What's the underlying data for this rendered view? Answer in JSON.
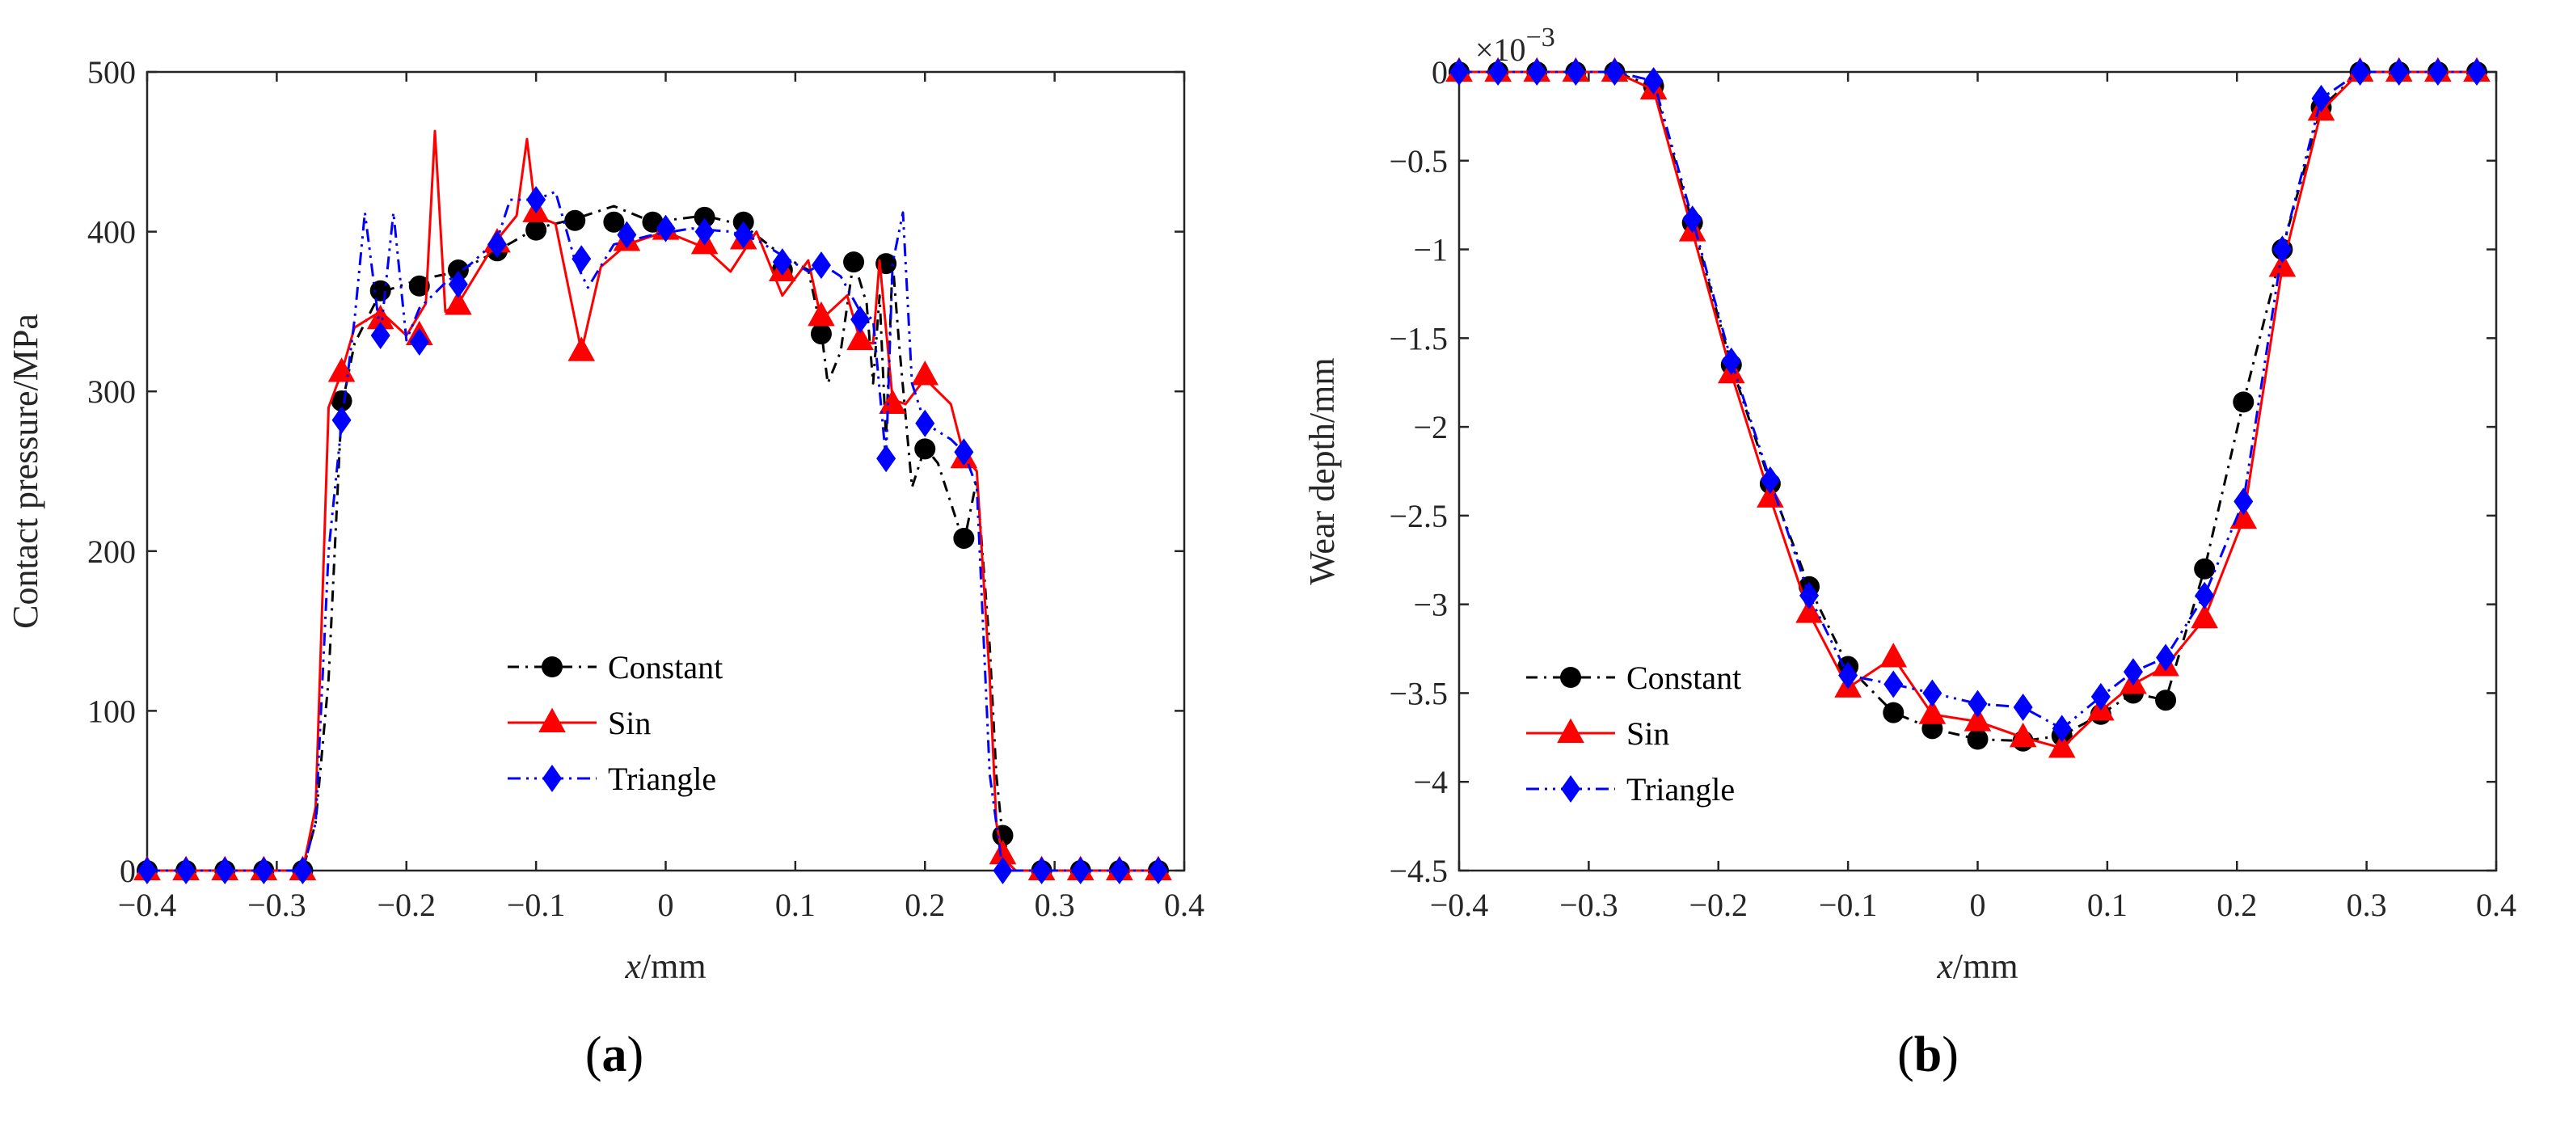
{
  "chart_data": [
    {
      "type": "line",
      "panel_label": "(a)",
      "panel_paren_open": "(",
      "panel_letter": "a",
      "panel_paren_close": ")",
      "xlabel_var": "x",
      "xlabel_unit": "/mm",
      "ylabel": "Contact pressure/MPa",
      "xlim": [
        -0.4,
        0.4
      ],
      "ylim": [
        0,
        500
      ],
      "xticks": [
        -0.4,
        -0.3,
        -0.2,
        -0.1,
        0,
        0.1,
        0.2,
        0.3,
        0.4
      ],
      "xtick_labels": [
        "−0.4",
        "−0.3",
        "−0.2",
        "−0.1",
        "0",
        "0.1",
        "0.2",
        "0.3",
        "0.4"
      ],
      "yticks": [
        0,
        100,
        200,
        300,
        400,
        500
      ],
      "ytick_labels": [
        "0",
        "100",
        "200",
        "300",
        "400",
        "500"
      ],
      "exponent": "",
      "legend_location": "lower-center",
      "series": [
        {
          "name": "Constant",
          "color": "#000000",
          "dash": "14,8,3,8",
          "marker": "circle",
          "x": [
            -0.4,
            -0.37,
            -0.34,
            -0.31,
            -0.28,
            -0.27,
            -0.26,
            -0.25,
            -0.24,
            -0.22,
            -0.19,
            -0.16,
            -0.13,
            -0.1,
            -0.07,
            -0.04,
            -0.01,
            0.03,
            0.06,
            0.09,
            0.11,
            0.12,
            0.125,
            0.135,
            0.145,
            0.155,
            0.16,
            0.165,
            0.17,
            0.175,
            0.18,
            0.19,
            0.2,
            0.21,
            0.23,
            0.24,
            0.25,
            0.255,
            0.26,
            0.27,
            0.29,
            0.32,
            0.35,
            0.38
          ],
          "y": [
            0,
            0,
            0,
            0,
            0,
            30,
            120,
            290,
            330,
            362,
            370,
            375,
            388,
            402,
            408,
            416,
            406,
            410,
            404,
            385,
            376,
            338,
            305,
            325,
            382,
            355,
            305,
            360,
            270,
            382,
            330,
            240,
            265,
            255,
            205,
            245,
            140,
            60,
            20,
            0,
            0,
            0,
            0,
            0
          ],
          "mx": [
            -0.4,
            -0.37,
            -0.34,
            -0.31,
            -0.28,
            -0.25,
            -0.22,
            -0.19,
            -0.16,
            -0.13,
            -0.1,
            -0.07,
            -0.04,
            -0.01,
            0.03,
            0.06,
            0.09,
            0.12,
            0.145,
            0.17,
            0.2,
            0.23,
            0.26,
            0.29,
            0.32,
            0.35,
            0.38
          ],
          "my": [
            0,
            0,
            0,
            0,
            0,
            294,
            363,
            366,
            376,
            388,
            401,
            407,
            406,
            406,
            409,
            406,
            376,
            336,
            381,
            380,
            264,
            208,
            22,
            0,
            0,
            0,
            0
          ]
        },
        {
          "name": "Sin",
          "color": "#ff0000",
          "dash": "",
          "marker": "triangle",
          "x": [
            -0.4,
            -0.37,
            -0.34,
            -0.31,
            -0.28,
            -0.27,
            -0.26,
            -0.25,
            -0.24,
            -0.22,
            -0.2,
            -0.185,
            -0.178,
            -0.17,
            -0.16,
            -0.13,
            -0.115,
            -0.107,
            -0.1,
            -0.085,
            -0.065,
            -0.05,
            -0.03,
            0,
            0.03,
            0.05,
            0.07,
            0.09,
            0.11,
            0.12,
            0.14,
            0.15,
            0.16,
            0.165,
            0.175,
            0.185,
            0.2,
            0.22,
            0.23,
            0.24,
            0.25,
            0.255,
            0.26,
            0.27,
            0.29,
            0.32,
            0.35,
            0.38
          ],
          "y": [
            0,
            0,
            0,
            0,
            0,
            40,
            290,
            312,
            340,
            350,
            335,
            355,
            463,
            350,
            355,
            395,
            410,
            458,
            410,
            405,
            325,
            378,
            392,
            400,
            390,
            375,
            400,
            360,
            382,
            345,
            360,
            332,
            330,
            382,
            295,
            292,
            308,
            292,
            260,
            250,
            120,
            30,
            8,
            0,
            0,
            0,
            0,
            0
          ],
          "mx": [
            -0.4,
            -0.37,
            -0.34,
            -0.31,
            -0.28,
            -0.25,
            -0.22,
            -0.19,
            -0.16,
            -0.13,
            -0.1,
            -0.065,
            -0.03,
            0,
            0.03,
            0.06,
            0.09,
            0.12,
            0.15,
            0.175,
            0.2,
            0.23,
            0.26,
            0.29,
            0.32,
            0.35,
            0.38
          ],
          "my": [
            0,
            0,
            0,
            0,
            0,
            312,
            345,
            335,
            354,
            393,
            412,
            325,
            394,
            401,
            392,
            395,
            375,
            347,
            332,
            292,
            310,
            258,
            10,
            0,
            0,
            0,
            0
          ]
        },
        {
          "name": "Triangle",
          "color": "#0000ff",
          "dash": "16,7,3,7,3,7",
          "marker": "diamond",
          "x": [
            -0.4,
            -0.37,
            -0.34,
            -0.31,
            -0.28,
            -0.27,
            -0.26,
            -0.25,
            -0.24,
            -0.232,
            -0.22,
            -0.21,
            -0.2,
            -0.19,
            -0.17,
            -0.15,
            -0.13,
            -0.12,
            -0.1,
            -0.085,
            -0.07,
            -0.06,
            -0.04,
            -0.01,
            0.02,
            0.05,
            0.07,
            0.09,
            0.11,
            0.12,
            0.135,
            0.15,
            0.16,
            0.17,
            0.175,
            0.183,
            0.19,
            0.2,
            0.22,
            0.23,
            0.24,
            0.25,
            0.26,
            0.27,
            0.29,
            0.32,
            0.35,
            0.38
          ],
          "y": [
            0,
            0,
            0,
            0,
            0,
            30,
            200,
            280,
            345,
            412,
            335,
            412,
            332,
            352,
            368,
            380,
            395,
            420,
            420,
            425,
            382,
            365,
            392,
            398,
            402,
            400,
            395,
            385,
            375,
            380,
            372,
            350,
            345,
            257,
            380,
            412,
            305,
            280,
            270,
            262,
            240,
            60,
            0,
            0,
            0,
            0,
            0,
            0
          ],
          "mx": [
            -0.4,
            -0.37,
            -0.34,
            -0.31,
            -0.28,
            -0.25,
            -0.22,
            -0.19,
            -0.16,
            -0.13,
            -0.1,
            -0.065,
            -0.03,
            0,
            0.03,
            0.06,
            0.09,
            0.12,
            0.15,
            0.17,
            0.2,
            0.23,
            0.26,
            0.29,
            0.32,
            0.35,
            0.38
          ],
          "my": [
            0,
            0,
            0,
            0,
            0,
            282,
            335,
            331,
            367,
            392,
            420,
            383,
            398,
            402,
            400,
            398,
            381,
            379,
            345,
            258,
            280,
            262,
            0,
            0,
            0,
            0,
            0
          ]
        }
      ]
    },
    {
      "type": "line",
      "panel_label": "(b)",
      "panel_paren_open": "(",
      "panel_letter": "b",
      "panel_paren_close": ")",
      "xlabel_var": "x",
      "xlabel_unit": "/mm",
      "ylabel": "Wear depth/mm",
      "xlim": [
        -0.4,
        0.4
      ],
      "ylim": [
        -4.5,
        0
      ],
      "xticks": [
        -0.4,
        -0.3,
        -0.2,
        -0.1,
        0,
        0.1,
        0.2,
        0.3,
        0.4
      ],
      "xtick_labels": [
        "−0.4",
        "−0.3",
        "−0.2",
        "−0.1",
        "0",
        "0.1",
        "0.2",
        "0.3",
        "0.4"
      ],
      "yticks": [
        -4.5,
        -4,
        -3.5,
        -3,
        -2.5,
        -2,
        -1.5,
        -1,
        -0.5,
        0
      ],
      "ytick_labels": [
        "−4.5",
        "−4",
        "−3.5",
        "−3",
        "−2.5",
        "−2",
        "−1.5",
        "−1",
        "−0.5",
        "0"
      ],
      "exponent_base": "×10",
      "exponent": "−3",
      "legend_location": "lower-left",
      "series": [
        {
          "name": "Constant",
          "color": "#000000",
          "dash": "14,8,3,8",
          "marker": "circle",
          "x": [
            -0.4,
            -0.37,
            -0.34,
            -0.31,
            -0.28,
            -0.25,
            -0.22,
            -0.19,
            -0.16,
            -0.13,
            -0.1,
            -0.065,
            -0.035,
            0,
            0.035,
            0.065,
            0.095,
            0.12,
            0.145,
            0.175,
            0.205,
            0.235,
            0.265,
            0.295,
            0.325,
            0.355,
            0.385
          ],
          "y": [
            0,
            0,
            0,
            0,
            0,
            -0.08,
            -0.85,
            -1.65,
            -2.32,
            -2.9,
            -3.35,
            -3.61,
            -3.7,
            -3.76,
            -3.77,
            -3.74,
            -3.62,
            -3.5,
            -3.54,
            -2.8,
            -1.86,
            -1.0,
            -0.2,
            0,
            0,
            0,
            0
          ],
          "mx": [
            -0.4,
            -0.37,
            -0.34,
            -0.31,
            -0.28,
            -0.25,
            -0.22,
            -0.19,
            -0.16,
            -0.13,
            -0.1,
            -0.065,
            -0.035,
            0,
            0.035,
            0.065,
            0.095,
            0.12,
            0.145,
            0.175,
            0.205,
            0.235,
            0.265,
            0.295,
            0.325,
            0.355,
            0.385
          ],
          "my": [
            0,
            0,
            0,
            0,
            0,
            -0.08,
            -0.85,
            -1.65,
            -2.32,
            -2.9,
            -3.35,
            -3.61,
            -3.7,
            -3.76,
            -3.77,
            -3.74,
            -3.62,
            -3.5,
            -3.54,
            -2.8,
            -1.86,
            -1.0,
            -0.2,
            0,
            0,
            0,
            0
          ]
        },
        {
          "name": "Sin",
          "color": "#ff0000",
          "dash": "",
          "marker": "triangle",
          "x": [
            -0.4,
            -0.37,
            -0.34,
            -0.31,
            -0.28,
            -0.25,
            -0.22,
            -0.19,
            -0.16,
            -0.13,
            -0.1,
            -0.065,
            -0.035,
            0,
            0.035,
            0.065,
            0.095,
            0.12,
            0.145,
            0.175,
            0.205,
            0.235,
            0.265,
            0.295,
            0.325,
            0.355,
            0.385
          ],
          "y": [
            0,
            0,
            0,
            0,
            0,
            -0.1,
            -0.9,
            -1.7,
            -2.4,
            -3.05,
            -3.47,
            -3.3,
            -3.62,
            -3.66,
            -3.75,
            -3.81,
            -3.6,
            -3.45,
            -3.35,
            -3.08,
            -2.52,
            -1.1,
            -0.22,
            0,
            0,
            0,
            0
          ],
          "mx": [
            -0.4,
            -0.37,
            -0.34,
            -0.31,
            -0.28,
            -0.25,
            -0.22,
            -0.19,
            -0.16,
            -0.13,
            -0.1,
            -0.065,
            -0.035,
            0,
            0.035,
            0.065,
            0.095,
            0.12,
            0.145,
            0.175,
            0.205,
            0.235,
            0.265,
            0.295,
            0.325,
            0.355,
            0.385
          ],
          "my": [
            0,
            0,
            0,
            0,
            0,
            -0.1,
            -0.9,
            -1.7,
            -2.4,
            -3.05,
            -3.47,
            -3.3,
            -3.62,
            -3.66,
            -3.75,
            -3.81,
            -3.6,
            -3.45,
            -3.35,
            -3.08,
            -2.52,
            -1.1,
            -0.22,
            0,
            0,
            0,
            0
          ]
        },
        {
          "name": "Triangle",
          "color": "#0000ff",
          "dash": "16,7,3,7,3,7",
          "marker": "diamond",
          "x": [
            -0.4,
            -0.37,
            -0.34,
            -0.31,
            -0.28,
            -0.25,
            -0.22,
            -0.19,
            -0.16,
            -0.13,
            -0.1,
            -0.065,
            -0.035,
            0,
            0.035,
            0.065,
            0.095,
            0.12,
            0.145,
            0.175,
            0.205,
            0.235,
            0.265,
            0.295,
            0.325,
            0.355,
            0.385
          ],
          "y": [
            0,
            0,
            0,
            0,
            0,
            -0.05,
            -0.83,
            -1.63,
            -2.3,
            -2.95,
            -3.4,
            -3.45,
            -3.5,
            -3.56,
            -3.58,
            -3.7,
            -3.52,
            -3.38,
            -3.3,
            -2.95,
            -2.42,
            -1.0,
            -0.15,
            0,
            0,
            0,
            0
          ],
          "mx": [
            -0.4,
            -0.37,
            -0.34,
            -0.31,
            -0.28,
            -0.25,
            -0.22,
            -0.19,
            -0.16,
            -0.13,
            -0.1,
            -0.065,
            -0.035,
            0,
            0.035,
            0.065,
            0.095,
            0.12,
            0.145,
            0.175,
            0.205,
            0.235,
            0.265,
            0.295,
            0.325,
            0.355,
            0.385
          ],
          "my": [
            0,
            0,
            0,
            0,
            0,
            -0.05,
            -0.83,
            -1.63,
            -2.3,
            -2.95,
            -3.4,
            -3.45,
            -3.5,
            -3.56,
            -3.58,
            -3.7,
            -3.52,
            -3.38,
            -3.3,
            -2.95,
            -2.42,
            -1.0,
            -0.15,
            0,
            0,
            0,
            0
          ]
        }
      ]
    }
  ]
}
